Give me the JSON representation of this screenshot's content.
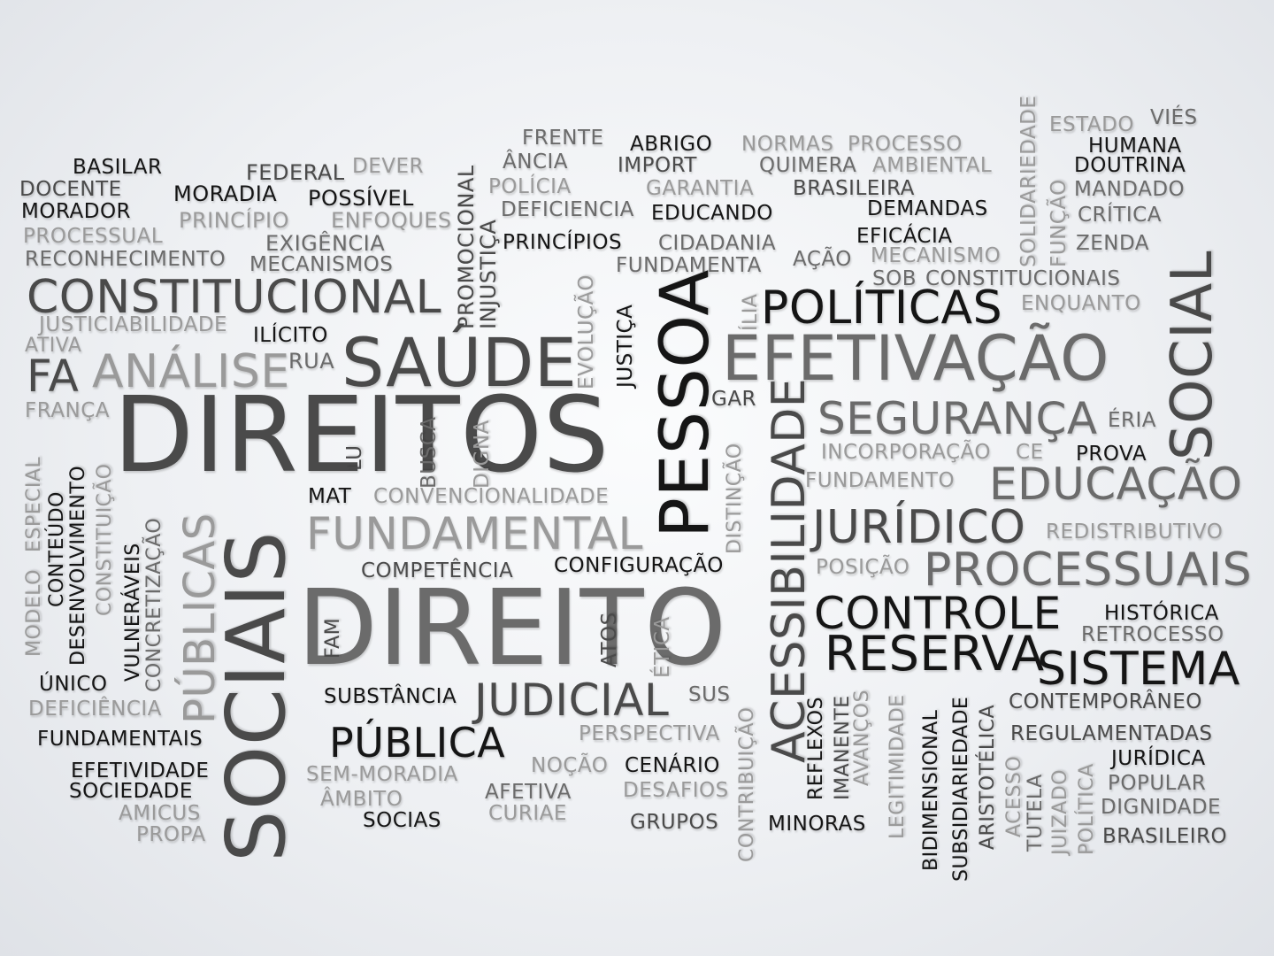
{
  "colors": {
    "black": "#151515",
    "dark": "#4a4a4a",
    "mid": "#6b6b6b",
    "light": "#9a9a9a"
  },
  "words": {
    "basilar": "BASILAR",
    "docente": "DOCENTE",
    "morador": "MORADOR",
    "processual": "PROCESSUAL",
    "reconhecimento": "RECONHECIMENTO",
    "federal": "FEDERAL",
    "dever": "DEVER",
    "moradia": "MORADIA",
    "possivel": "POSSÍVEL",
    "principio": "PRINCÍPIO",
    "enfoques": "ENFOQUES",
    "exigencia": "EXIGÊNCIA",
    "mecanismos": "MECANISMOS",
    "constitucional": "CONSTITUCIONAL",
    "justiciabilidade": "JUSTICIABILIDADE",
    "ativa": "ATIVA",
    "ilicito": "ILÍCITO",
    "fa": "FA",
    "analise": "ANÁLISE",
    "rua": "RUA",
    "franca": "FRANÇA",
    "direitos": "DIREITOS",
    "saude": "SAÚDE",
    "promocional": "PROMOCIONAL",
    "injustica": "INJUSTIÇA",
    "frente": "FRENTE",
    "ancia": "ÂNCIA",
    "policia": "POLÍCIA",
    "deficiencia1": "DEFICIENCIA",
    "principios": "PRINCÍPIOS",
    "abrigo": "ABRIGO",
    "import": "IMPORT",
    "garantia": "GARANTIA",
    "educando": "EDUCANDO",
    "cidadania": "CIDADANIA",
    "fundamenta": "FUNDAMENTA",
    "normas": "NORMAS",
    "processo": "PROCESSO",
    "quimera": "QUIMERA",
    "ambiental": "AMBIENTAL",
    "brasileira": "BRASILEIRA",
    "demandas": "DEMANDAS",
    "eficacia": "EFICÁCIA",
    "acao": "AÇÃO",
    "mecanismo": "MECANISMO",
    "sob": "SOB",
    "constitucionais": "CONSTITUCIONAIS",
    "enquanto": "ENQUANTO",
    "solidariedade": "SOLIDARIEDADE",
    "funcao": "FUNÇÃO",
    "estado": "ESTADO",
    "vies": "VIÉS",
    "humana": "HUMANA",
    "doutrina": "DOUTRINA",
    "mandado": "MANDADO",
    "critica": "CRÍTICA",
    "zenda": "ZENDA",
    "social": "SOCIAL",
    "politicas": "POLÍTICAS",
    "efetivacao": "EFETIVAÇÃO",
    "ilia": "ÍLIA",
    "evolucao": "EVOLUÇÃO",
    "justica": "JUSTIÇA",
    "pessoa": "PESSOA",
    "gar": "GAR",
    "seguranca": "SEGURANÇA",
    "eria": "ÉRIA",
    "incorporacao": "INCORPORAÇÃO",
    "ce": "CE",
    "prova": "PROVA",
    "fundamento": "FUNDAMENTO",
    "educacao": "EDUCAÇÃO",
    "juridico": "JURÍDICO",
    "redistributivo": "REDISTRIBUTIVO",
    "posicao": "POSIÇÃO",
    "processuais": "PROCESSUAIS",
    "controle": "CONTROLE",
    "historica": "HISTÓRICA",
    "retrocesso": "RETROCESSO",
    "reserva": "RESERVA",
    "sistema": "SISTEMA",
    "contemporaneo": "CONTEMPORÂNEO",
    "regulamentadas": "REGULAMENTADAS",
    "juridica": "JURÍDICA",
    "popular": "POPULAR",
    "dignidade": "DIGNIDADE",
    "brasileiro": "BRASILEIRO",
    "lu": "LU",
    "busca": "BUSCA",
    "digna": "DIGNA",
    "mat": "MAT",
    "convencionalidade": "CONVENCIONALIDADE",
    "fundamental": "FUNDAMENTAL",
    "competencia": "COMPETÊNCIA",
    "configuracao": "CONFIGURAÇÃO",
    "distincao": "DISTINÇÃO",
    "acessibilidade": "ACESSIBILIDADE",
    "direito": "DIREITO",
    "fam": "FAM",
    "atos": "ATOS",
    "etica": "ÉTICA",
    "sociais": "SOCIAIS",
    "publicas": "PÚBLICAS",
    "constituicao": "CONSTITUIÇÃO",
    "concretizacao": "CONCRETIZAÇÃO",
    "vulneraveis": "VULNERÁVEIS",
    "desenvolvimento": "DESENVOLVIMENTO",
    "conteudo": "CONTEÚDO",
    "especial": "ESPECIAL",
    "modelo": "MODELO",
    "unico": "ÚNICO",
    "deficiencia2": "DEFICIÊNCIA",
    "fundamentais": "FUNDAMENTAIS",
    "efetividade": "EFETIVIDADE",
    "sociedade": "SOCIEDADE",
    "amicus": "AMICUS",
    "propa": "PROPA",
    "substancia": "SUBSTÂNCIA",
    "judicial": "JUDICIAL",
    "publica": "PÚBLICA",
    "sus": "SUS",
    "perspectiva": "PERSPECTIVA",
    "nocao": "NOÇÃO",
    "cenario": "CENÁRIO",
    "semmoradia": "SEM-MORADIA",
    "afetiva": "AFETIVA",
    "ambito": "ÂMBITO",
    "curiae": "CURIAE",
    "desafios": "DESAFIOS",
    "socias": "SOCIAS",
    "grupos": "GRUPOS",
    "minoras": "MINORAS",
    "contribuicao": "CONTRIBUIÇÃO",
    "reflexos": "REFLEXOS",
    "imanente": "IMANENTE",
    "avancos": "AVANÇOS",
    "legitimidade": "LEGITIMIDADE",
    "bidimensional": "BIDIMENSIONAL",
    "subsidiariedade": "SUBSIDIARIEDADE",
    "aristotelica": "ARISTOTÉLICA",
    "acesso": "ACESSO",
    "tutela": "TUTELA",
    "juizado": "JUIZADO",
    "politica": "POLÍTICA"
  }
}
